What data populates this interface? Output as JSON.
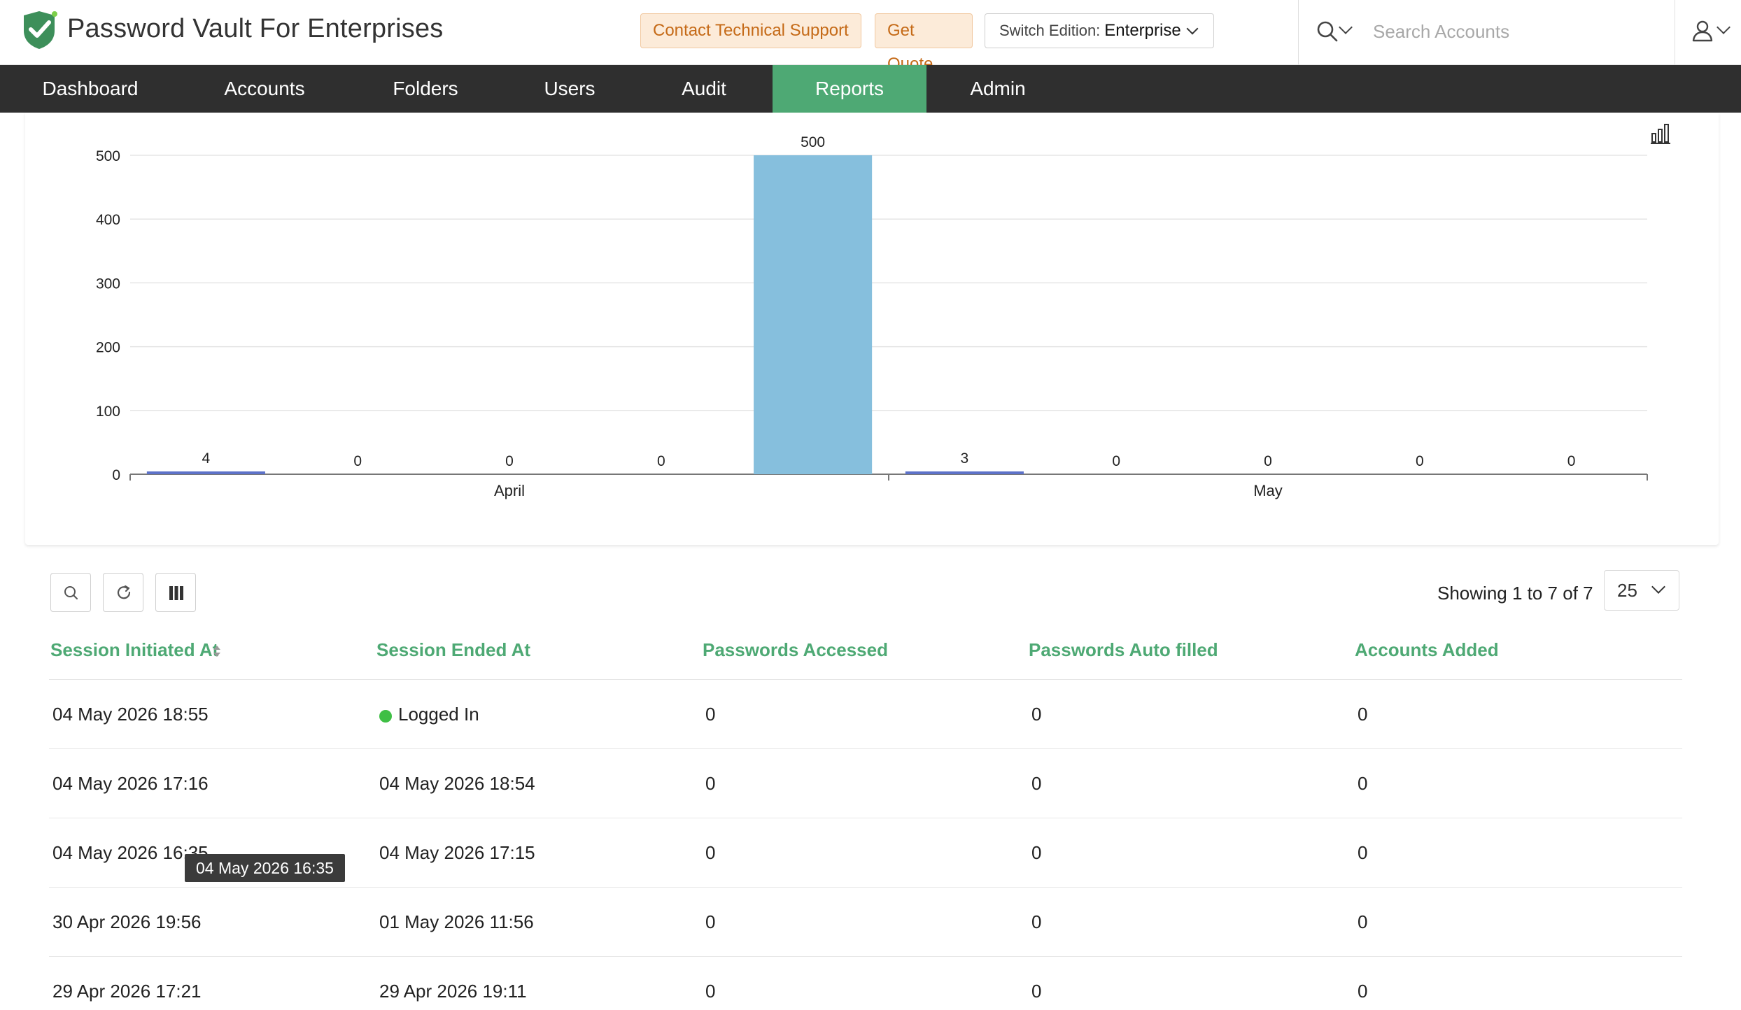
{
  "header": {
    "app_title": "Password Vault For Enterprises",
    "contact_support_label": "Contact Technical Support",
    "get_quote_label": "Get Quote",
    "edition_label": "Switch Edition:",
    "edition_value": "Enterprise",
    "search_placeholder": "Search Accounts",
    "brand_color": "#4ea974",
    "logo_icon": "shield-check-icon",
    "search_icon": "magnifier-icon",
    "user_icon": "user-icon"
  },
  "nav": {
    "items": [
      {
        "label": "Dashboard"
      },
      {
        "label": "Accounts"
      },
      {
        "label": "Folders"
      },
      {
        "label": "Users"
      },
      {
        "label": "Audit"
      },
      {
        "label": "Reports",
        "active": true
      },
      {
        "label": "Admin"
      }
    ]
  },
  "chart_data": {
    "type": "bar",
    "ylim": [
      0,
      500
    ],
    "yticks": [
      0,
      100,
      200,
      300,
      400,
      500
    ],
    "bars": [
      {
        "value": 4,
        "label": "4"
      },
      {
        "value": 0,
        "label": "0"
      },
      {
        "value": 0,
        "label": "0"
      },
      {
        "value": 0,
        "label": "0"
      },
      {
        "value": 500,
        "label": "500"
      },
      {
        "value": 3,
        "label": "3"
      },
      {
        "value": 0,
        "label": "0"
      },
      {
        "value": 0,
        "label": "0"
      },
      {
        "value": 0,
        "label": "0"
      },
      {
        "value": 0,
        "label": "0"
      }
    ],
    "groups": [
      "April",
      "May"
    ],
    "bar_color": "#86bfdd",
    "small_bar_color": "#5d72c9",
    "grid": true
  },
  "toolbar": {
    "search_icon": "search-icon",
    "refresh_icon": "refresh-icon",
    "columns_icon": "columns-icon",
    "showing_text": "Showing 1 to 7 of 7",
    "page_size": "25"
  },
  "table": {
    "columns": [
      "Session Initiated At",
      "Session Ended At",
      "Passwords Accessed",
      "Passwords Auto filled",
      "Accounts Added"
    ],
    "rows": [
      {
        "initiated": "04 May 2026 18:55",
        "ended": "Logged In",
        "accessed": "0",
        "autofilled": "0",
        "added": "0"
      },
      {
        "initiated": "04 May 2026 17:16",
        "ended": "04 May 2026 18:54",
        "accessed": "0",
        "autofilled": "0",
        "added": "0"
      },
      {
        "initiated": "04 May 2026 16:35",
        "ended": "04 May 2026 17:15",
        "accessed": "0",
        "autofilled": "0",
        "added": "0"
      },
      {
        "initiated": "30 Apr 2026 19:56",
        "ended": "01 May 2026 11:56",
        "accessed": "0",
        "autofilled": "0",
        "added": "0"
      },
      {
        "initiated": "29 Apr 2026 17:21",
        "ended": "29 Apr 2026 19:11",
        "accessed": "0",
        "autofilled": "0",
        "added": "0"
      }
    ],
    "tooltip": "04 May 2026 16:35"
  }
}
